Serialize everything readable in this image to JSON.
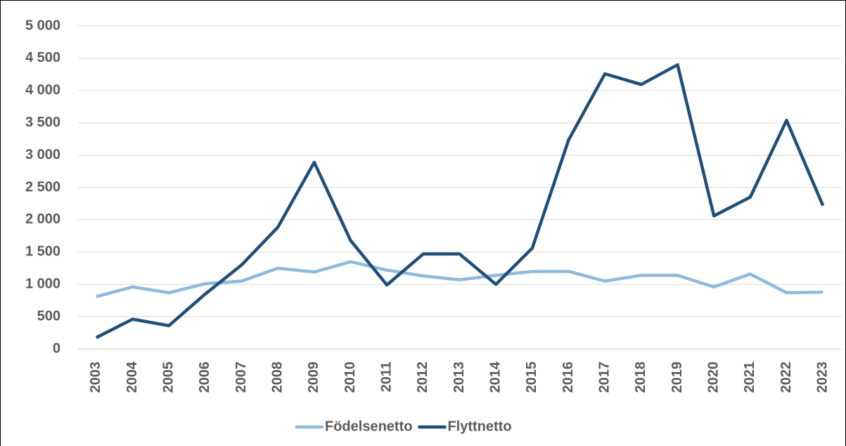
{
  "chart_data": {
    "type": "line",
    "categories": [
      "2003",
      "2004",
      "2005",
      "2006",
      "2007",
      "2008",
      "2009",
      "2010",
      "2011",
      "2012",
      "2013",
      "2014",
      "2015",
      "2016",
      "2017",
      "2018",
      "2019",
      "2020",
      "2021",
      "2022",
      "2023"
    ],
    "series": [
      {
        "name": "Födelsenetto",
        "color": "#8fbadd",
        "values": [
          810,
          960,
          870,
          1010,
          1050,
          1250,
          1190,
          1350,
          1220,
          1130,
          1070,
          1140,
          1200,
          1200,
          1050,
          1140,
          1140,
          960,
          1160,
          870,
          880
        ]
      },
      {
        "name": "Flyttnetto",
        "color": "#1f4e79",
        "values": [
          175,
          460,
          360,
          850,
          1300,
          1885,
          2890,
          1680,
          990,
          1470,
          1470,
          1000,
          1560,
          3235,
          4260,
          4095,
          4400,
          2060,
          2350,
          3540,
          2220
        ]
      }
    ],
    "ylim": [
      0,
      5000
    ],
    "yticks": [
      0,
      500,
      {
        "value": 1000,
        "label": "1 000"
      },
      {
        "value": 1500,
        "label": "1 500"
      },
      {
        "value": 2000,
        "label": "2 000"
      },
      {
        "value": 2500,
        "label": "2 500"
      },
      {
        "value": 3000,
        "label": "3 000"
      },
      {
        "value": 3500,
        "label": "3 500"
      },
      {
        "value": 4000,
        "label": "4 000"
      },
      {
        "value": 4500,
        "label": "4 500"
      },
      {
        "value": 5000,
        "label": "5 000"
      }
    ],
    "grid": true,
    "legend": "bottom"
  }
}
